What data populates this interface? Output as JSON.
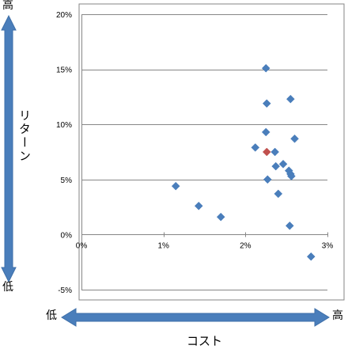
{
  "labels": {
    "y_high": "高",
    "y_low": "低",
    "x_low": "低",
    "x_high": "高"
  },
  "colors": {
    "arrow": "#4a7ebb",
    "arrow_edge": "#3e6fa8",
    "point": "#4a7ebb",
    "highlight": "#c0504d",
    "grid": "#868686",
    "frame": "#868686"
  },
  "chart_data": {
    "type": "scatter",
    "title": "",
    "xlabel": "コスト",
    "ylabel": "リターン",
    "xlim": [
      0,
      3
    ],
    "ylim": [
      -5,
      20
    ],
    "x_ticks": [
      {
        "value": 0,
        "label": "0%"
      },
      {
        "value": 1,
        "label": "1%"
      },
      {
        "value": 2,
        "label": "2%"
      },
      {
        "value": 3,
        "label": "3%"
      }
    ],
    "y_ticks": [
      {
        "value": 20,
        "label": "20%"
      },
      {
        "value": 15,
        "label": "15%"
      },
      {
        "value": 10,
        "label": "10%"
      },
      {
        "value": 5,
        "label": "5%"
      },
      {
        "value": 0,
        "label": "0%"
      },
      {
        "value": -5,
        "label": "-5%"
      }
    ],
    "grid": true,
    "series": [
      {
        "marker": "diamond",
        "color": "#4a7ebb",
        "points": [
          {
            "x": 1.15,
            "y": 4.4
          },
          {
            "x": 1.43,
            "y": 2.6
          },
          {
            "x": 1.7,
            "y": 1.6
          },
          {
            "x": 2.12,
            "y": 7.9
          },
          {
            "x": 2.25,
            "y": 15.1
          },
          {
            "x": 2.26,
            "y": 11.9
          },
          {
            "x": 2.25,
            "y": 9.3
          },
          {
            "x": 2.27,
            "y": 5.0
          },
          {
            "x": 2.36,
            "y": 7.5
          },
          {
            "x": 2.37,
            "y": 6.2
          },
          {
            "x": 2.4,
            "y": 3.7
          },
          {
            "x": 2.46,
            "y": 6.4
          },
          {
            "x": 2.53,
            "y": 5.8
          },
          {
            "x": 2.55,
            "y": 5.5
          },
          {
            "x": 2.56,
            "y": 5.3
          },
          {
            "x": 2.55,
            "y": 12.3
          },
          {
            "x": 2.54,
            "y": 0.8
          },
          {
            "x": 2.6,
            "y": 8.7
          },
          {
            "x": 2.8,
            "y": -2.0
          }
        ]
      },
      {
        "marker": "diamond",
        "color": "#c0504d",
        "points": [
          {
            "x": 2.26,
            "y": 7.5
          }
        ]
      }
    ]
  }
}
